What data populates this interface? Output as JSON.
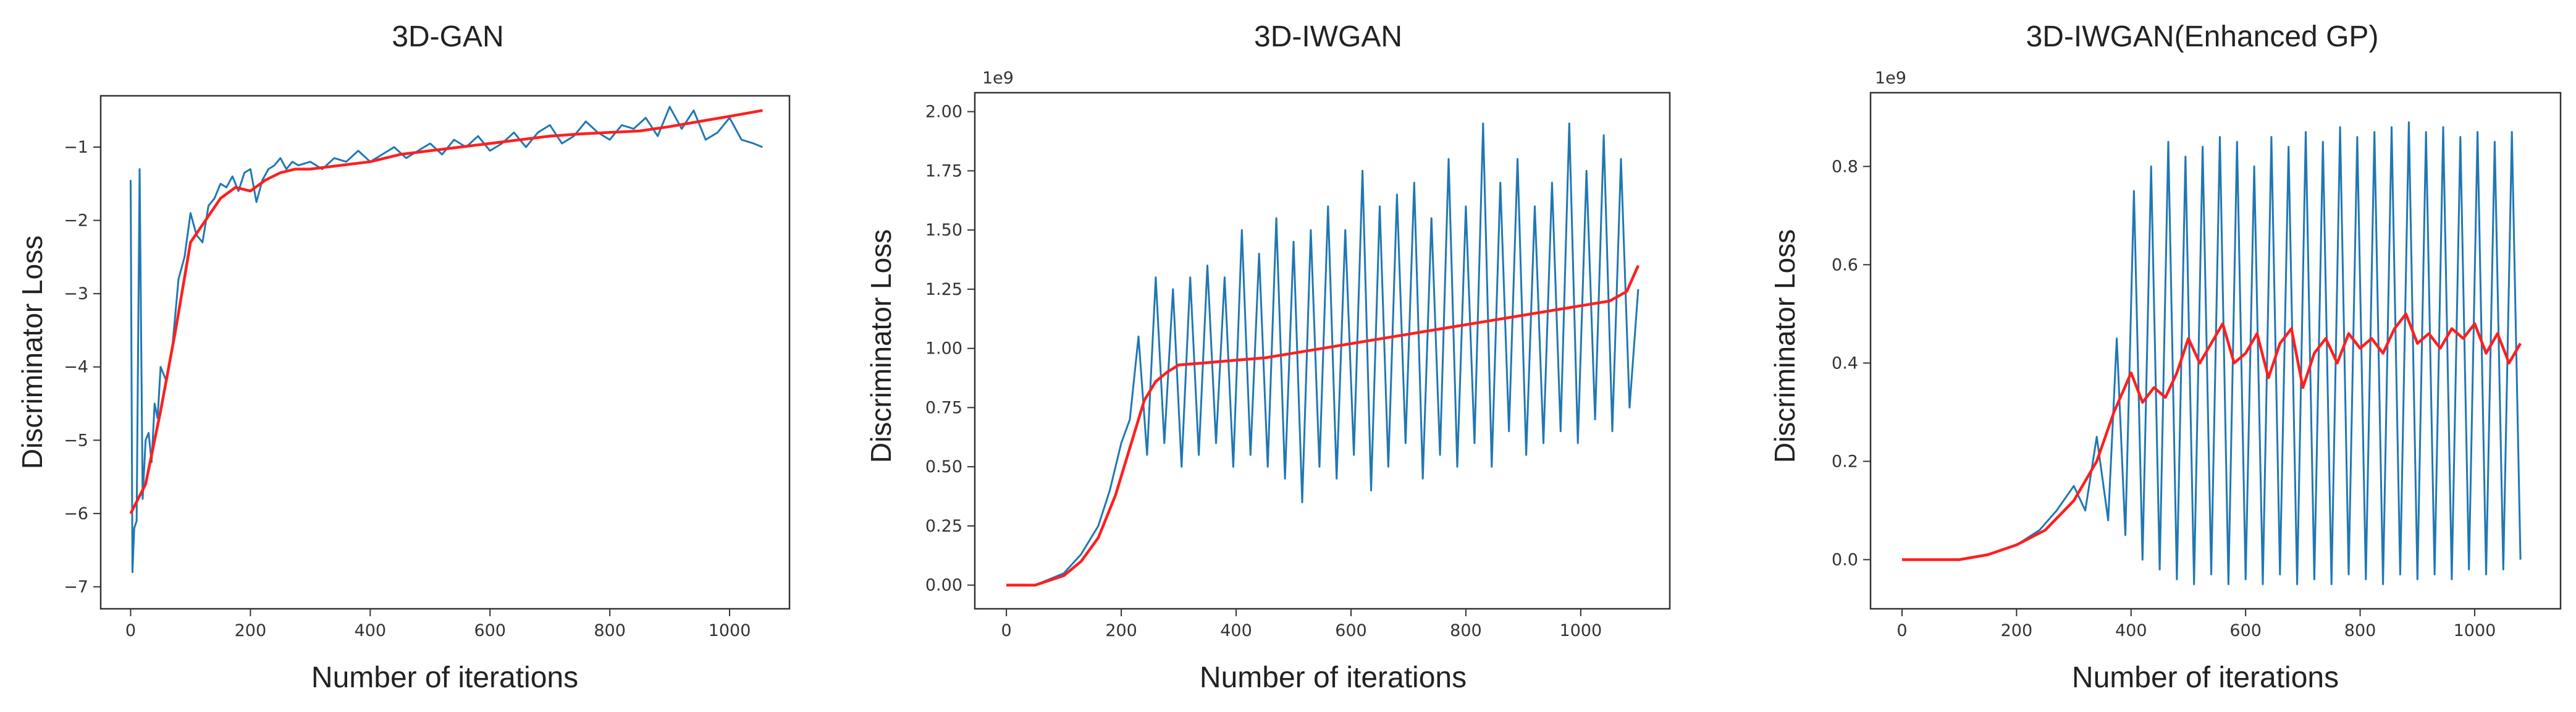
{
  "colors": {
    "raw": "#1f77b4",
    "smoothed": "#ff1f1f",
    "axes": "#333333"
  },
  "chart_data": [
    {
      "type": "line",
      "title": "3D-GAN",
      "xlabel": "Number of iterations",
      "ylabel": "Discriminator Loss",
      "offset_text": "",
      "xlim": [
        -50,
        1100
      ],
      "ylim": [
        -7.3,
        -0.3
      ],
      "xticks": [
        0,
        200,
        400,
        600,
        800,
        1000
      ],
      "yticks": [
        -7,
        -6,
        -5,
        -4,
        -3,
        -2,
        -1
      ],
      "ytick_labels": [
        "−7",
        "−6",
        "−5",
        "−4",
        "−3",
        "−2",
        "−1"
      ],
      "series": [
        {
          "name": "raw",
          "style": "raw",
          "x": [
            0,
            3,
            6,
            10,
            15,
            20,
            25,
            30,
            35,
            40,
            45,
            50,
            60,
            70,
            80,
            90,
            100,
            110,
            120,
            130,
            140,
            150,
            160,
            170,
            180,
            190,
            200,
            210,
            220,
            230,
            240,
            250,
            260,
            270,
            280,
            300,
            320,
            340,
            360,
            380,
            400,
            420,
            440,
            460,
            480,
            500,
            520,
            540,
            560,
            580,
            600,
            620,
            640,
            660,
            680,
            700,
            720,
            740,
            760,
            780,
            800,
            820,
            840,
            860,
            880,
            900,
            920,
            940,
            960,
            980,
            1000,
            1020,
            1040,
            1055
          ],
          "y": [
            -1.45,
            -6.8,
            -6.2,
            -6.1,
            -1.3,
            -5.8,
            -5.0,
            -4.9,
            -5.3,
            -4.5,
            -4.7,
            -4.0,
            -4.2,
            -3.7,
            -2.8,
            -2.5,
            -1.9,
            -2.2,
            -2.3,
            -1.8,
            -1.7,
            -1.5,
            -1.55,
            -1.4,
            -1.6,
            -1.35,
            -1.3,
            -1.75,
            -1.45,
            -1.3,
            -1.25,
            -1.15,
            -1.3,
            -1.2,
            -1.25,
            -1.2,
            -1.3,
            -1.15,
            -1.2,
            -1.05,
            -1.2,
            -1.1,
            -1.0,
            -1.15,
            -1.05,
            -0.95,
            -1.1,
            -0.9,
            -1.0,
            -0.85,
            -1.05,
            -0.95,
            -0.8,
            -1.0,
            -0.8,
            -0.7,
            -0.95,
            -0.85,
            -0.65,
            -0.8,
            -0.9,
            -0.7,
            -0.75,
            -0.6,
            -0.85,
            -0.45,
            -0.75,
            -0.5,
            -0.9,
            -0.8,
            -0.6,
            -0.9,
            -0.95,
            -1.0
          ]
        },
        {
          "name": "smoothed",
          "style": "smooth",
          "x": [
            0,
            25,
            50,
            75,
            100,
            125,
            150,
            175,
            200,
            225,
            250,
            275,
            300,
            350,
            400,
            450,
            500,
            550,
            600,
            650,
            700,
            750,
            800,
            850,
            900,
            950,
            1000,
            1055
          ],
          "y": [
            -6.0,
            -5.6,
            -4.6,
            -3.5,
            -2.3,
            -2.0,
            -1.7,
            -1.55,
            -1.6,
            -1.45,
            -1.35,
            -1.3,
            -1.3,
            -1.25,
            -1.2,
            -1.1,
            -1.05,
            -1.0,
            -0.95,
            -0.9,
            -0.85,
            -0.82,
            -0.8,
            -0.78,
            -0.72,
            -0.65,
            -0.58,
            -0.5
          ]
        }
      ]
    },
    {
      "type": "line",
      "title": "3D-IWGAN",
      "xlabel": "Number of iterations",
      "ylabel": "Discriminator Loss",
      "offset_text": "1e9",
      "xlim": [
        -55,
        1155
      ],
      "ylim": [
        -0.1,
        2.08
      ],
      "xticks": [
        0,
        200,
        400,
        600,
        800,
        1000
      ],
      "yticks": [
        0,
        0.25,
        0.5,
        0.75,
        1.0,
        1.25,
        1.5,
        1.75,
        2.0
      ],
      "ytick_labels": [
        "0.00",
        "0.25",
        "0.50",
        "0.75",
        "1.00",
        "1.25",
        "1.50",
        "1.75",
        "2.00"
      ],
      "series": [
        {
          "name": "raw",
          "style": "raw",
          "x": [
            0,
            50,
            100,
            130,
            160,
            180,
            200,
            215,
            230,
            245,
            260,
            275,
            290,
            305,
            320,
            335,
            350,
            365,
            380,
            395,
            410,
            425,
            440,
            455,
            470,
            485,
            500,
            515,
            530,
            545,
            560,
            575,
            590,
            605,
            620,
            635,
            650,
            665,
            680,
            695,
            710,
            725,
            740,
            755,
            770,
            785,
            800,
            815,
            830,
            845,
            860,
            875,
            890,
            905,
            920,
            935,
            950,
            965,
            980,
            995,
            1010,
            1025,
            1040,
            1055,
            1070,
            1085,
            1100
          ],
          "y": [
            0.0,
            0.0,
            0.05,
            0.13,
            0.25,
            0.4,
            0.6,
            0.7,
            1.05,
            0.55,
            1.3,
            0.6,
            1.25,
            0.5,
            1.3,
            0.55,
            1.35,
            0.6,
            1.3,
            0.5,
            1.5,
            0.55,
            1.4,
            0.5,
            1.55,
            0.45,
            1.45,
            0.35,
            1.5,
            0.5,
            1.6,
            0.45,
            1.5,
            0.55,
            1.75,
            0.4,
            1.6,
            0.5,
            1.65,
            0.6,
            1.7,
            0.45,
            1.55,
            0.55,
            1.8,
            0.5,
            1.6,
            0.6,
            1.95,
            0.5,
            1.7,
            0.65,
            1.8,
            0.55,
            1.6,
            0.6,
            1.7,
            0.65,
            1.95,
            0.6,
            1.75,
            0.7,
            1.9,
            0.65,
            1.8,
            0.75,
            1.25
          ]
        },
        {
          "name": "smoothed",
          "style": "smooth",
          "x": [
            0,
            50,
            100,
            130,
            160,
            190,
            220,
            240,
            260,
            280,
            300,
            350,
            400,
            450,
            500,
            550,
            600,
            650,
            700,
            750,
            800,
            850,
            900,
            950,
            1000,
            1050,
            1080,
            1100
          ],
          "y": [
            0.0,
            0.0,
            0.04,
            0.1,
            0.2,
            0.38,
            0.62,
            0.78,
            0.86,
            0.9,
            0.93,
            0.94,
            0.95,
            0.96,
            0.98,
            1.0,
            1.02,
            1.04,
            1.06,
            1.08,
            1.1,
            1.12,
            1.14,
            1.16,
            1.18,
            1.2,
            1.24,
            1.35
          ]
        }
      ]
    },
    {
      "type": "line",
      "title": "3D-IWGAN(Enhanced GP)",
      "xlabel": "Number of iterations",
      "ylabel": "Discriminator Loss",
      "offset_text": "1e9",
      "xlim": [
        -55,
        1150
      ],
      "ylim": [
        -0.1,
        0.95
      ],
      "xticks": [
        0,
        200,
        400,
        600,
        800,
        1000
      ],
      "yticks": [
        0,
        0.2,
        0.4,
        0.6,
        0.8
      ],
      "ytick_labels": [
        "0.0",
        "0.2",
        "0.4",
        "0.6",
        "0.8"
      ],
      "series": [
        {
          "name": "raw",
          "style": "raw",
          "x": [
            0,
            100,
            150,
            200,
            240,
            270,
            300,
            320,
            340,
            360,
            375,
            390,
            405,
            420,
            435,
            450,
            465,
            480,
            495,
            510,
            525,
            540,
            555,
            570,
            585,
            600,
            615,
            630,
            645,
            660,
            675,
            690,
            705,
            720,
            735,
            750,
            765,
            780,
            795,
            810,
            825,
            840,
            855,
            870,
            885,
            900,
            915,
            930,
            945,
            960,
            975,
            990,
            1005,
            1020,
            1035,
            1050,
            1065,
            1080
          ],
          "y": [
            0.0,
            0.0,
            0.01,
            0.03,
            0.06,
            0.1,
            0.15,
            0.1,
            0.25,
            0.08,
            0.45,
            0.05,
            0.75,
            0.0,
            0.8,
            -0.02,
            0.85,
            -0.04,
            0.82,
            -0.05,
            0.84,
            -0.03,
            0.86,
            -0.05,
            0.85,
            -0.04,
            0.8,
            -0.05,
            0.86,
            -0.03,
            0.84,
            -0.05,
            0.87,
            -0.04,
            0.85,
            -0.05,
            0.88,
            -0.03,
            0.86,
            -0.04,
            0.87,
            -0.05,
            0.88,
            -0.03,
            0.89,
            -0.04,
            0.87,
            -0.03,
            0.88,
            -0.04,
            0.86,
            -0.02,
            0.87,
            -0.03,
            0.85,
            -0.02,
            0.87,
            0.0
          ]
        },
        {
          "name": "smoothed",
          "style": "smooth",
          "x": [
            0,
            100,
            150,
            200,
            250,
            300,
            340,
            370,
            400,
            420,
            440,
            460,
            480,
            500,
            520,
            540,
            560,
            580,
            600,
            620,
            640,
            660,
            680,
            700,
            720,
            740,
            760,
            780,
            800,
            820,
            840,
            860,
            880,
            900,
            920,
            940,
            960,
            980,
            1000,
            1020,
            1040,
            1060,
            1080
          ],
          "y": [
            0.0,
            0.0,
            0.01,
            0.03,
            0.06,
            0.12,
            0.2,
            0.3,
            0.38,
            0.32,
            0.35,
            0.33,
            0.38,
            0.45,
            0.4,
            0.44,
            0.48,
            0.4,
            0.42,
            0.46,
            0.37,
            0.44,
            0.47,
            0.35,
            0.42,
            0.45,
            0.4,
            0.46,
            0.43,
            0.45,
            0.42,
            0.47,
            0.5,
            0.44,
            0.46,
            0.43,
            0.47,
            0.45,
            0.48,
            0.42,
            0.46,
            0.4,
            0.44
          ]
        }
      ]
    }
  ]
}
